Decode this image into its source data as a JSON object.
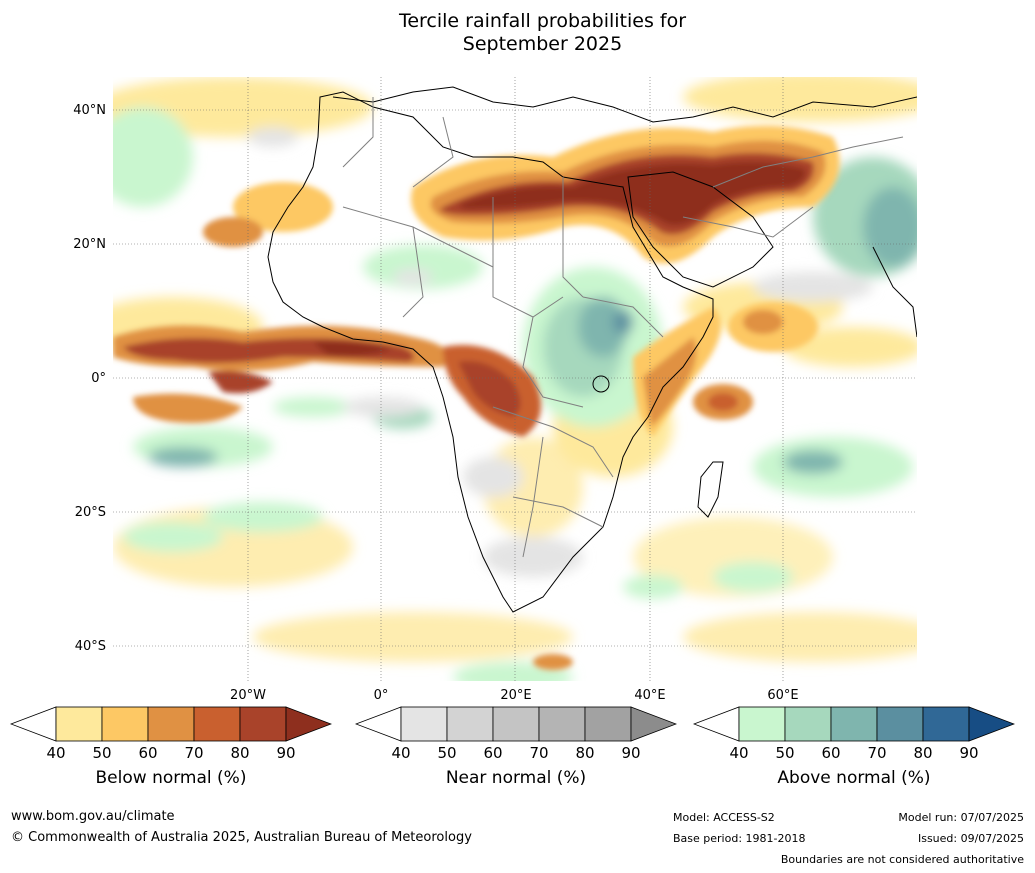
{
  "title": {
    "line1": "Tercile rainfall probabilities for",
    "line2": "September 2025"
  },
  "map": {
    "lat_labels": [
      "40°N",
      "20°N",
      "0°",
      "20°S",
      "40°S"
    ],
    "lon_labels": [
      "20°W",
      "0°",
      "20°E",
      "40°E",
      "60°E"
    ],
    "region": "Africa and Middle East"
  },
  "legends": [
    {
      "label": "Below normal (%)",
      "ticks": [
        "40",
        "50",
        "60",
        "70",
        "80",
        "90"
      ],
      "colors": [
        "#ffffff",
        "#fee99c",
        "#fdc864",
        "#e09143",
        "#c9602f",
        "#a9432a",
        "#8e2f1e"
      ]
    },
    {
      "label": "Near normal (%)",
      "ticks": [
        "40",
        "50",
        "60",
        "70",
        "80",
        "90"
      ],
      "colors": [
        "#ffffff",
        "#e4e4e4",
        "#d3d3d3",
        "#c4c4c4",
        "#b4b4b4",
        "#a2a2a2",
        "#8c8c8c"
      ]
    },
    {
      "label": "Above normal (%)",
      "ticks": [
        "40",
        "50",
        "60",
        "70",
        "80",
        "90"
      ],
      "colors": [
        "#ffffff",
        "#c9f6cf",
        "#a6d8bd",
        "#7fb5ae",
        "#5b8fa0",
        "#306896",
        "#174d84"
      ]
    }
  ],
  "footer": {
    "website": "www.bom.gov.au/climate",
    "copyright": "© Commonwealth of Australia 2025, Australian Bureau of Meteorology",
    "model": "Model: ACCESS-S2",
    "base_period": "Base period: 1981-2018",
    "model_run": "Model run: 07/07/2025",
    "issued": "Issued: 09/07/2025",
    "disclaimer": "Boundaries are not considered authoritative"
  }
}
